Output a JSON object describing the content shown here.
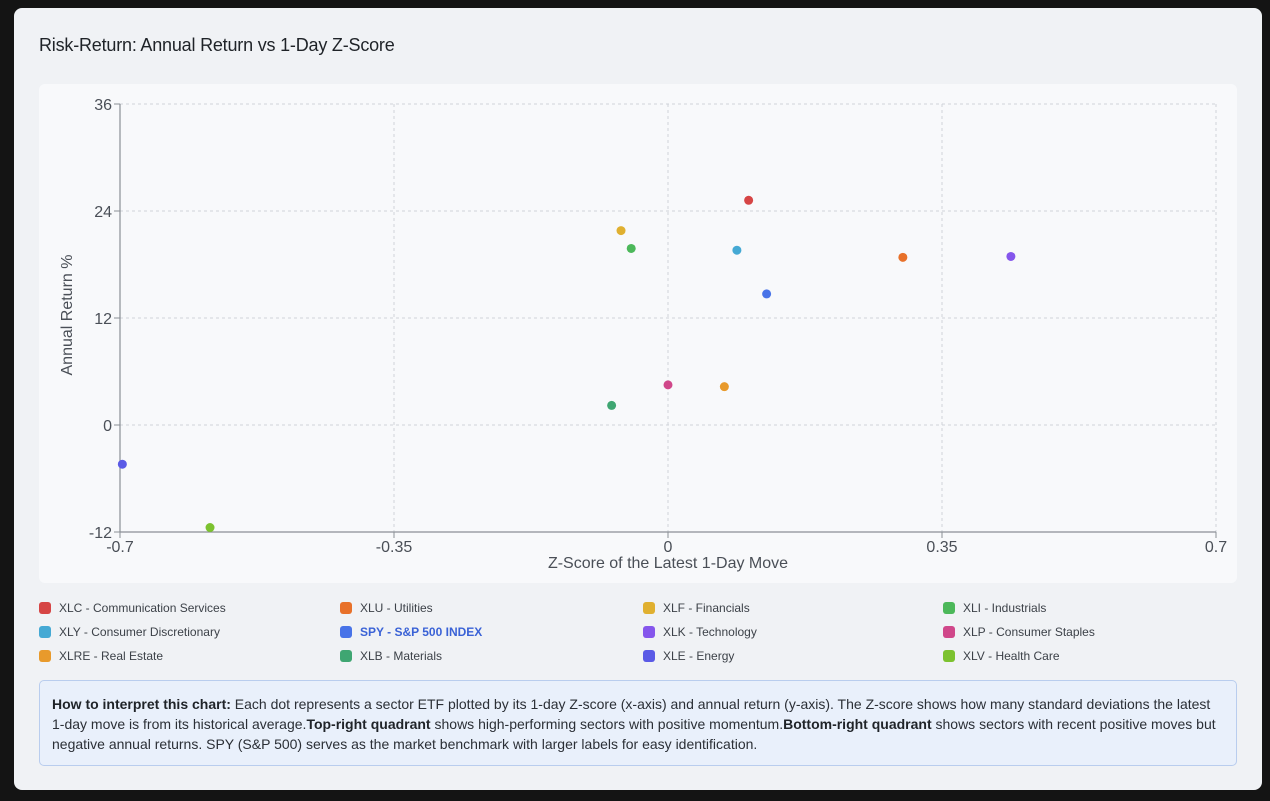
{
  "title": "Risk-Return: Annual Return vs 1-Day Z-Score",
  "chart_data": {
    "type": "scatter",
    "xlabel": "Z-Score of the Latest 1-Day Move",
    "ylabel": "Annual Return %",
    "xlim": [
      -0.7,
      0.7
    ],
    "ylim": [
      -12,
      36
    ],
    "xticks": [
      -0.7,
      -0.35,
      0,
      0.35,
      0.7
    ],
    "xtick_labels": [
      "-0.7",
      "-0.35",
      "0",
      "0.35",
      "0.7"
    ],
    "yticks": [
      -12,
      0,
      12,
      24,
      36
    ],
    "ytick_labels": [
      "-12",
      "0",
      "12",
      "24",
      "36"
    ],
    "grid": true,
    "series": [
      {
        "name": "XLC - Communication Services",
        "color": "#d64545",
        "x": 0.103,
        "y": 25.2
      },
      {
        "name": "XLU - Utilities",
        "color": "#e8712a",
        "x": 0.3,
        "y": 18.8
      },
      {
        "name": "XLF - Financials",
        "color": "#e0b030",
        "x": -0.06,
        "y": 21.8
      },
      {
        "name": "XLI - Industrials",
        "color": "#4cb85a",
        "x": -0.047,
        "y": 19.8
      },
      {
        "name": "XLY - Consumer Discretionary",
        "color": "#45a9d4",
        "x": 0.088,
        "y": 19.6
      },
      {
        "name": "SPY - S&P 500 INDEX",
        "color": "#4873e8",
        "x": 0.126,
        "y": 14.7
      },
      {
        "name": "XLK - Technology",
        "color": "#8556ec",
        "x": 0.438,
        "y": 18.9
      },
      {
        "name": "XLP - Consumer Staples",
        "color": "#d0478a",
        "x": 0.0,
        "y": 4.5
      },
      {
        "name": "XLRE - Real Estate",
        "color": "#e89a2c",
        "x": 0.072,
        "y": 4.3
      },
      {
        "name": "XLB - Materials",
        "color": "#3fa672",
        "x": -0.072,
        "y": 2.2
      },
      {
        "name": "XLE - Energy",
        "color": "#5a5ae6",
        "x": -0.697,
        "y": -4.4
      },
      {
        "name": "XLV - Health Care",
        "color": "#7cc22f",
        "x": -0.585,
        "y": -11.5
      }
    ]
  },
  "legend": {
    "items": [
      {
        "label": "XLC - Communication Services",
        "color": "#d64545"
      },
      {
        "label": "XLU - Utilities",
        "color": "#e8712a"
      },
      {
        "label": "XLF - Financials",
        "color": "#e0b030"
      },
      {
        "label": "XLI - Industrials",
        "color": "#4cb85a"
      },
      {
        "label": "XLY - Consumer Discretionary",
        "color": "#45a9d4"
      },
      {
        "label": "SPY - S&P 500 INDEX",
        "color": "#4873e8",
        "highlight": true
      },
      {
        "label": "XLK - Technology",
        "color": "#8556ec"
      },
      {
        "label": "XLP - Consumer Staples",
        "color": "#d0478a"
      },
      {
        "label": "XLRE - Real Estate",
        "color": "#e89a2c"
      },
      {
        "label": "XLB - Materials",
        "color": "#3fa672"
      },
      {
        "label": "XLE - Energy",
        "color": "#5a5ae6"
      },
      {
        "label": "XLV - Health Care",
        "color": "#7cc22f"
      }
    ]
  },
  "note": {
    "heading": "How to interpret this chart:",
    "text1": " Each dot represents a sector ETF plotted by its 1-day Z-score (x-axis) and annual return (y-axis). The Z-score shows how many standard deviations the latest 1-day move is from its historical average.",
    "bold2": "Top-right quadrant",
    "text2": " shows high-performing sectors with positive momentum.",
    "bold3": "Bottom-right quadrant",
    "text3": " shows sectors with recent positive moves but negative annual returns. SPY (S&P 500) serves as the market benchmark with larger labels for easy identification."
  }
}
